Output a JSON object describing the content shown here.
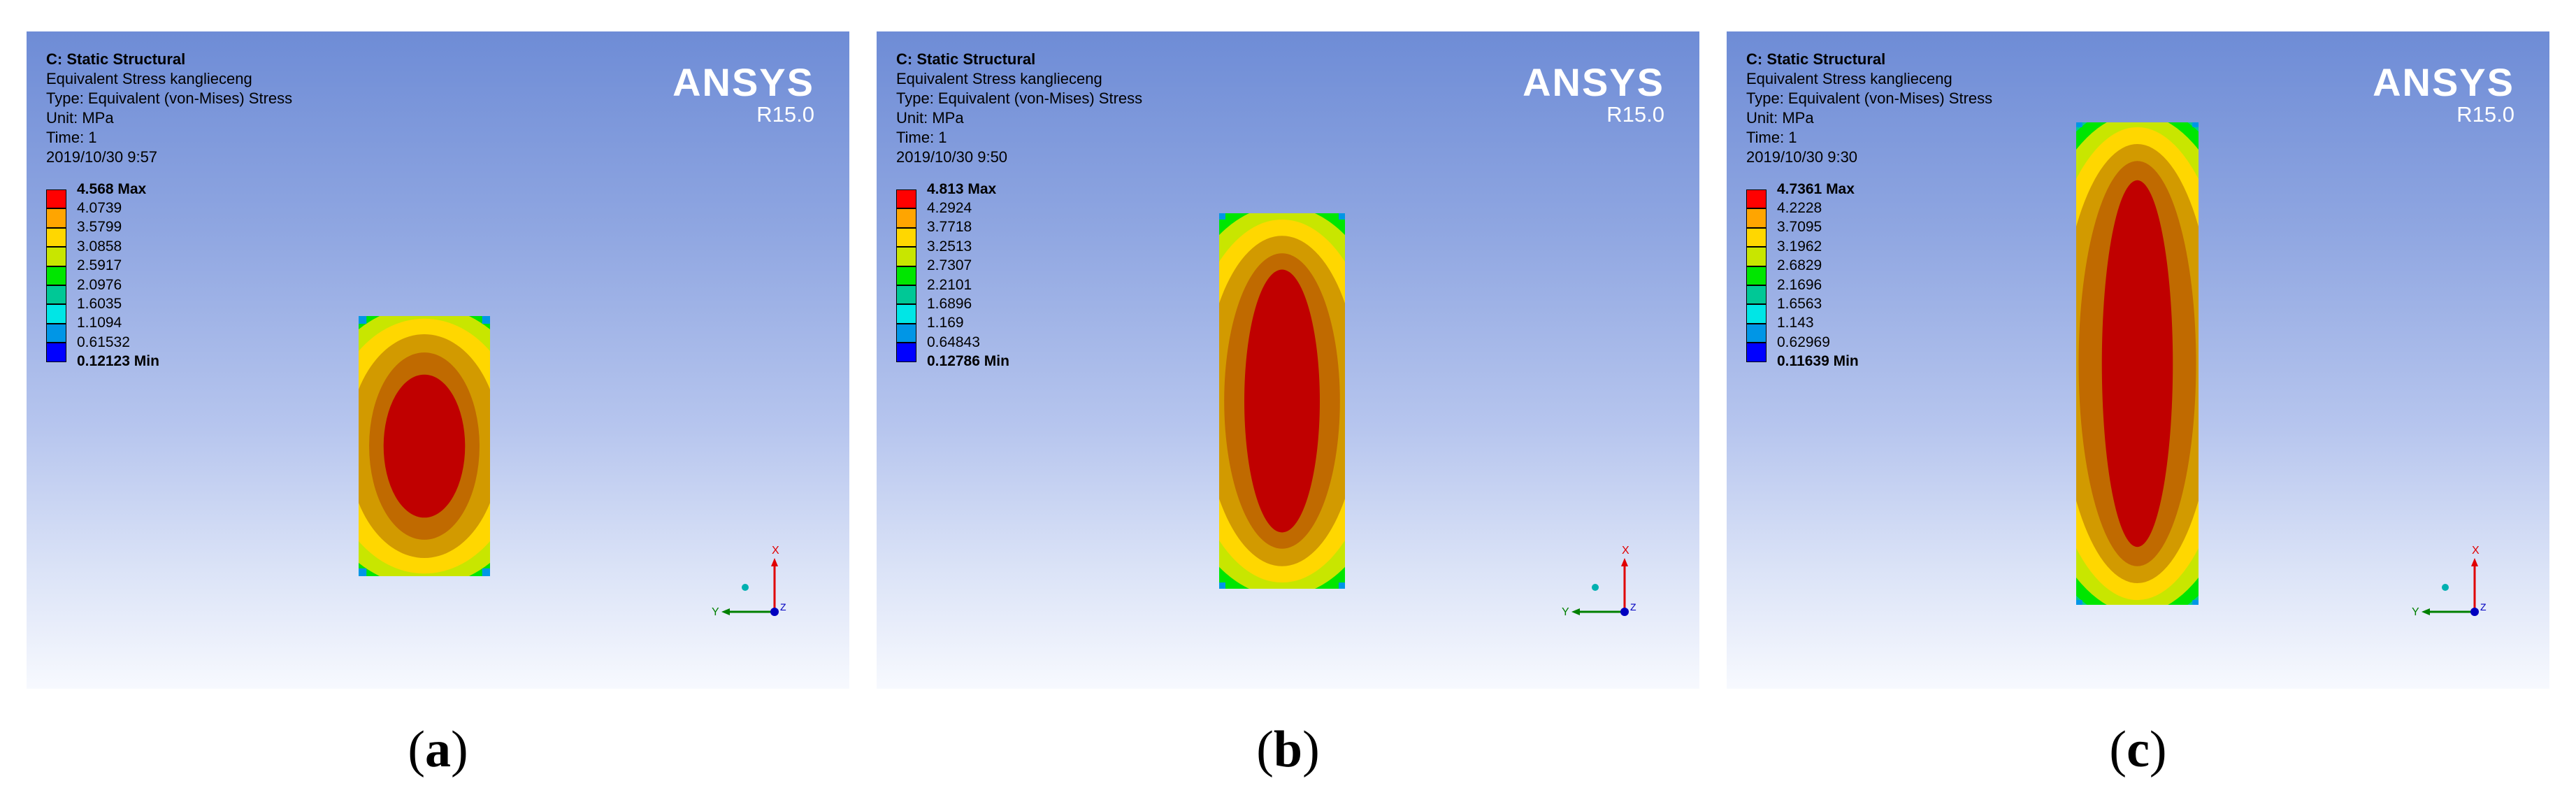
{
  "panels": [
    {
      "caption_open": "(",
      "caption_letter": "a",
      "caption_close": ")",
      "header": {
        "title": "C: Static Structural",
        "result": "Equivalent Stress kanglieceng",
        "type": "Type: Equivalent (von-Mises) Stress",
        "unit": "Unit: MPa",
        "time": "Time: 1",
        "date": "2019/10/30 9:57"
      },
      "logo": {
        "brand": "ANSYS",
        "version": "R15.0"
      },
      "legend": [
        "4.568 Max",
        "4.0739",
        "3.5799",
        "3.0858",
        "2.5917",
        "2.0976",
        "1.6035",
        "1.1094",
        "0.61532",
        "0.12123 Min"
      ],
      "triad": {
        "x": "X",
        "y": "Y",
        "z": "Z"
      }
    },
    {
      "caption_open": "(",
      "caption_letter": "b",
      "caption_close": ")",
      "header": {
        "title": "C: Static Structural",
        "result": "Equivalent Stress kanglieceng",
        "type": "Type: Equivalent (von-Mises) Stress",
        "unit": "Unit: MPa",
        "time": "Time: 1",
        "date": "2019/10/30 9:50"
      },
      "logo": {
        "brand": "ANSYS",
        "version": "R15.0"
      },
      "legend": [
        "4.813 Max",
        "4.2924",
        "3.7718",
        "3.2513",
        "2.7307",
        "2.2101",
        "1.6896",
        "1.169",
        "0.64843",
        "0.12786 Min"
      ],
      "triad": {
        "x": "X",
        "y": "Y",
        "z": "Z"
      }
    },
    {
      "caption_open": "(",
      "caption_letter": "c",
      "caption_close": ")",
      "header": {
        "title": "C: Static Structural",
        "result": "Equivalent Stress kanglieceng",
        "type": "Type: Equivalent (von-Mises) Stress",
        "unit": "Unit: MPa",
        "time": "Time: 1",
        "date": "2019/10/30 9:30"
      },
      "logo": {
        "brand": "ANSYS",
        "version": "R15.0"
      },
      "legend": [
        "4.7361 Max",
        "4.2228",
        "3.7095",
        "3.1962",
        "2.6829",
        "2.1696",
        "1.6563",
        "1.143",
        "0.62969",
        "0.11639 Min"
      ],
      "triad": {
        "x": "X",
        "y": "Y",
        "z": "Z"
      }
    }
  ],
  "colors": {
    "legend_scale": [
      "#ff0000",
      "#ffa500",
      "#ffd700",
      "#c8e600",
      "#00e600",
      "#00c896",
      "#00e6e6",
      "#0096e6",
      "#0000ff"
    ],
    "viewport_top": "#6e8cd6",
    "viewport_bottom": "#f7f9fe",
    "logo": "#ffffff",
    "axis_x": "#e00000",
    "axis_y": "#008000",
    "axis_z": "#0000c0"
  }
}
